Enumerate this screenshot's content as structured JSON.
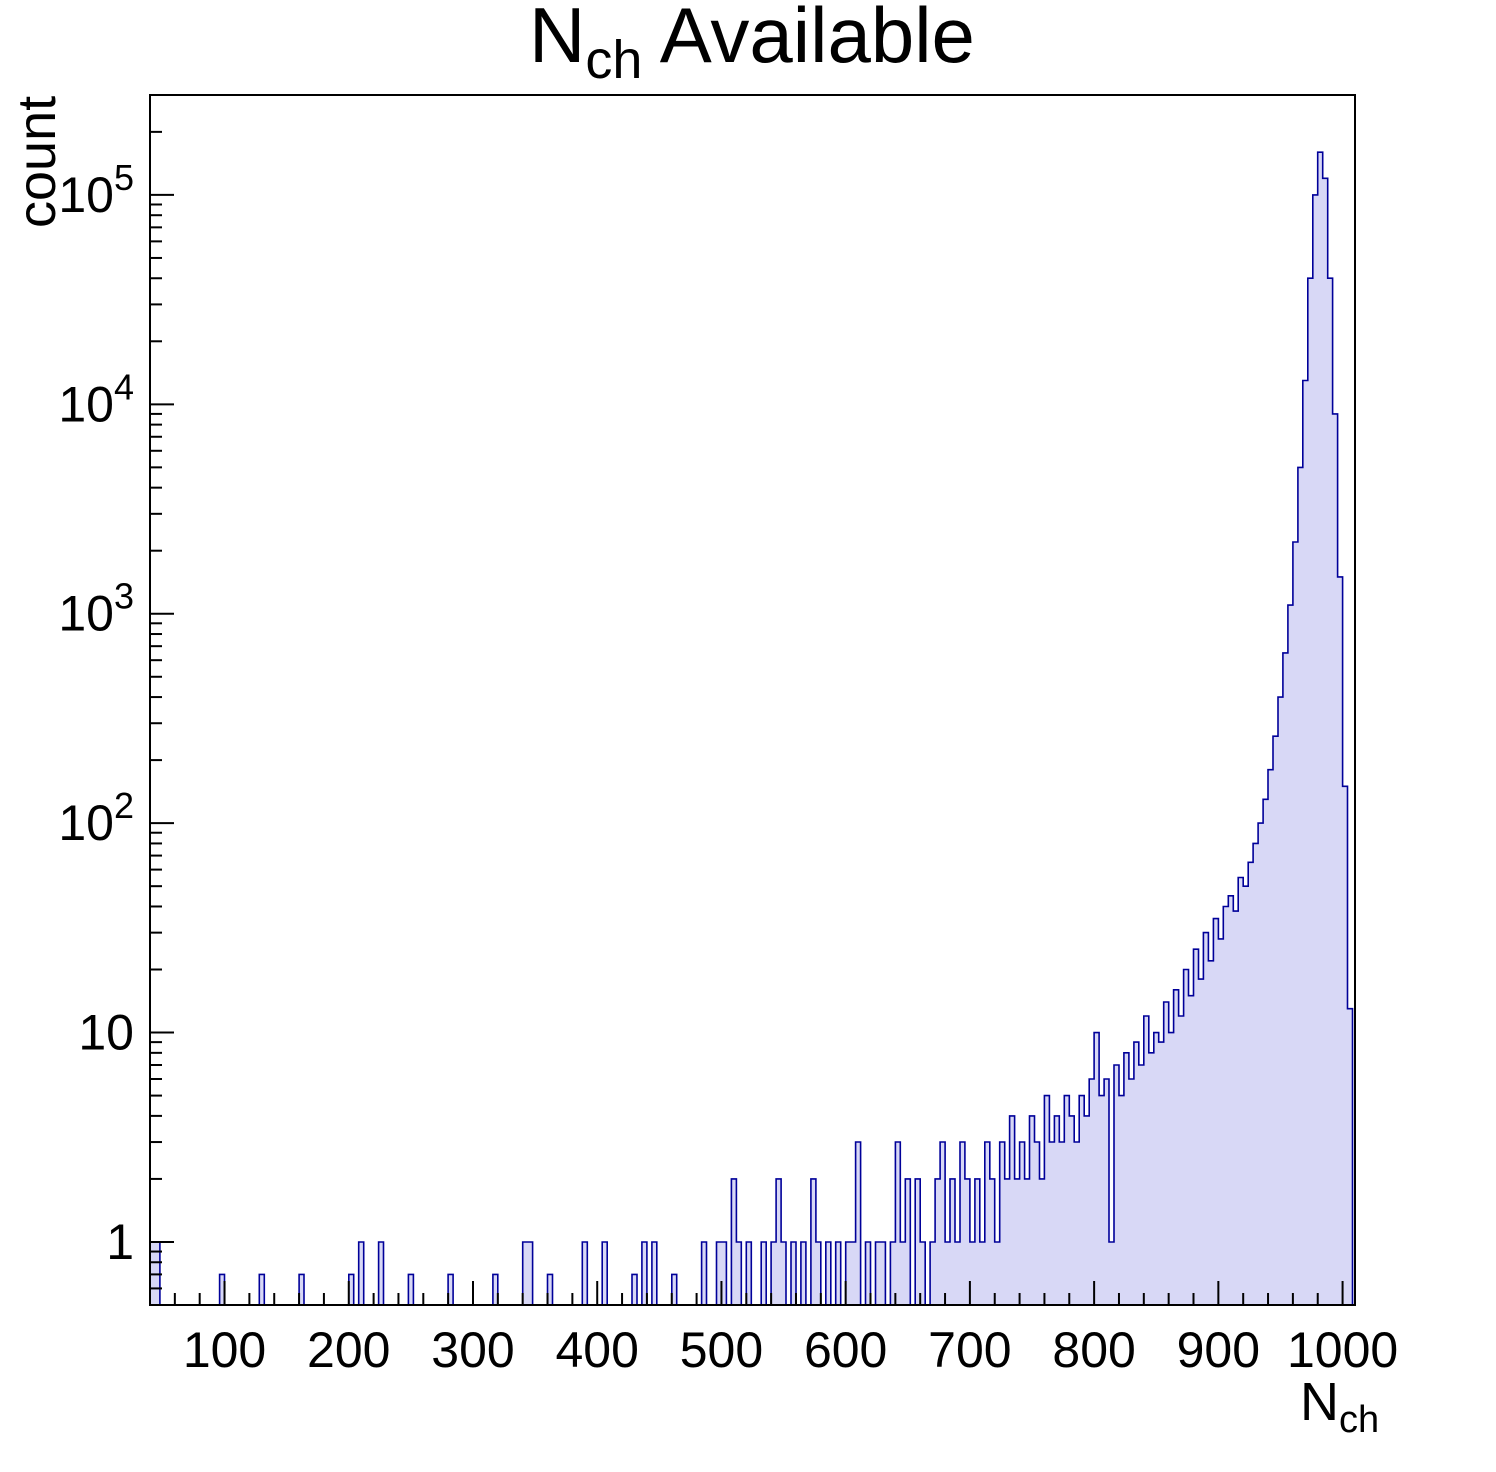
{
  "title": {
    "prefix": "N",
    "subscript": "ch",
    "suffix": " Available"
  },
  "axes": {
    "x": {
      "label_main": "N",
      "label_sub": "ch",
      "min": 40,
      "max": 1010,
      "major_ticks": [
        100,
        200,
        300,
        400,
        500,
        600,
        700,
        800,
        900,
        1000
      ],
      "minor_step": 20
    },
    "y": {
      "label": "count",
      "scale": "log",
      "min": 0.5,
      "max": 300000,
      "decades": [
        1,
        10,
        100,
        1000,
        10000,
        100000
      ]
    }
  },
  "style": {
    "line_color": "#000099",
    "fill_color": "#d8d8f6",
    "frame_color": "#000000",
    "background": "#ffffff"
  },
  "chart_data": {
    "type": "bar",
    "subtype": "histogram",
    "title": "N_ch Available",
    "xlabel": "N_ch",
    "ylabel": "count",
    "xlim": [
      40,
      1010
    ],
    "ylim": [
      0.5,
      300000
    ],
    "yscale": "log",
    "grid": false,
    "legend": false,
    "bin_width": 4,
    "x_start": 40,
    "bins": [
      [
        40,
        1
      ],
      [
        44,
        1
      ],
      [
        96,
        0.7
      ],
      [
        128,
        0.7
      ],
      [
        160,
        0.7
      ],
      [
        200,
        0.7
      ],
      [
        208,
        1
      ],
      [
        224,
        1
      ],
      [
        248,
        0.7
      ],
      [
        280,
        0.7
      ],
      [
        316,
        0.7
      ],
      [
        340,
        1
      ],
      [
        344,
        1
      ],
      [
        360,
        0.7
      ],
      [
        388,
        1
      ],
      [
        404,
        1
      ],
      [
        428,
        0.7
      ],
      [
        436,
        1
      ],
      [
        444,
        1
      ],
      [
        460,
        0.7
      ],
      [
        484,
        1
      ],
      [
        496,
        1
      ],
      [
        500,
        1
      ],
      [
        508,
        2
      ],
      [
        512,
        1
      ],
      [
        520,
        1
      ],
      [
        532,
        1
      ],
      [
        540,
        1
      ],
      [
        544,
        2
      ],
      [
        548,
        1
      ],
      [
        556,
        1
      ],
      [
        564,
        1
      ],
      [
        572,
        2
      ],
      [
        576,
        1
      ],
      [
        584,
        1
      ],
      [
        592,
        1
      ],
      [
        600,
        1
      ],
      [
        604,
        1
      ],
      [
        608,
        3
      ],
      [
        616,
        1
      ],
      [
        624,
        1
      ],
      [
        628,
        1
      ],
      [
        636,
        1
      ],
      [
        640,
        3
      ],
      [
        644,
        1
      ],
      [
        648,
        2
      ],
      [
        656,
        2
      ],
      [
        660,
        1
      ],
      [
        668,
        1
      ],
      [
        672,
        2
      ],
      [
        676,
        3
      ],
      [
        680,
        1
      ],
      [
        684,
        2
      ],
      [
        688,
        1
      ],
      [
        692,
        3
      ],
      [
        696,
        2
      ],
      [
        700,
        1
      ],
      [
        704,
        2
      ],
      [
        708,
        1
      ],
      [
        712,
        3
      ],
      [
        716,
        2
      ],
      [
        720,
        1
      ],
      [
        724,
        3
      ],
      [
        728,
        2
      ],
      [
        732,
        4
      ],
      [
        736,
        2
      ],
      [
        740,
        3
      ],
      [
        744,
        2
      ],
      [
        748,
        4
      ],
      [
        752,
        3
      ],
      [
        756,
        2
      ],
      [
        760,
        5
      ],
      [
        764,
        3
      ],
      [
        768,
        4
      ],
      [
        772,
        3
      ],
      [
        776,
        5
      ],
      [
        780,
        4
      ],
      [
        784,
        3
      ],
      [
        788,
        5
      ],
      [
        792,
        4
      ],
      [
        796,
        6
      ],
      [
        800,
        10
      ],
      [
        804,
        5
      ],
      [
        808,
        6
      ],
      [
        812,
        1
      ],
      [
        816,
        7
      ],
      [
        820,
        5
      ],
      [
        824,
        8
      ],
      [
        828,
        6
      ],
      [
        832,
        9
      ],
      [
        836,
        7
      ],
      [
        840,
        12
      ],
      [
        844,
        8
      ],
      [
        848,
        10
      ],
      [
        852,
        9
      ],
      [
        856,
        14
      ],
      [
        860,
        10
      ],
      [
        864,
        16
      ],
      [
        868,
        12
      ],
      [
        872,
        20
      ],
      [
        876,
        15
      ],
      [
        880,
        25
      ],
      [
        884,
        18
      ],
      [
        888,
        30
      ],
      [
        892,
        22
      ],
      [
        896,
        35
      ],
      [
        900,
        28
      ],
      [
        904,
        40
      ],
      [
        908,
        45
      ],
      [
        912,
        38
      ],
      [
        916,
        55
      ],
      [
        920,
        50
      ],
      [
        924,
        65
      ],
      [
        928,
        80
      ],
      [
        932,
        100
      ],
      [
        936,
        130
      ],
      [
        940,
        180
      ],
      [
        944,
        260
      ],
      [
        948,
        400
      ],
      [
        952,
        650
      ],
      [
        956,
        1100
      ],
      [
        960,
        2200
      ],
      [
        964,
        5000
      ],
      [
        968,
        13000
      ],
      [
        972,
        40000
      ],
      [
        976,
        100000
      ],
      [
        980,
        160000
      ],
      [
        984,
        120000
      ],
      [
        988,
        40000
      ],
      [
        992,
        9000
      ],
      [
        996,
        1500
      ],
      [
        1000,
        150
      ],
      [
        1004,
        13
      ]
    ]
  }
}
